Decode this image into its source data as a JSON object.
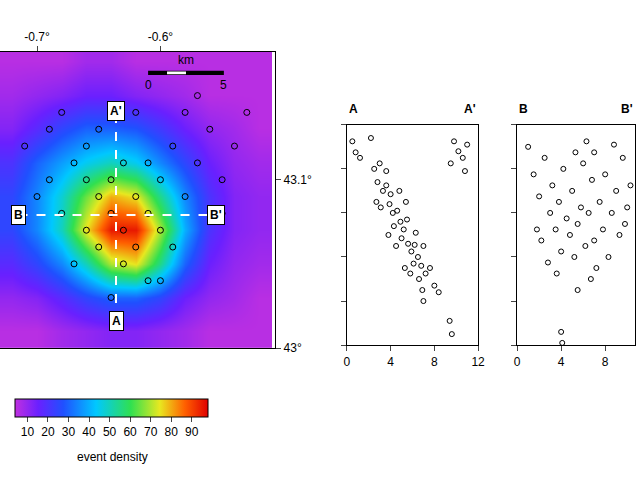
{
  "chart_data": [
    {
      "type": "heatmap",
      "x": [
        -0.72,
        -0.7,
        -0.68,
        -0.66,
        -0.64,
        -0.62,
        -0.6,
        -0.58,
        -0.56,
        -0.54,
        -0.52
      ],
      "y": [
        43.01,
        43.03,
        43.05,
        43.07,
        43.09,
        43.11,
        43.13,
        43.15,
        43.17
      ],
      "z": [
        [
          5,
          5,
          8,
          10,
          12,
          12,
          10,
          8,
          5,
          5,
          5
        ],
        [
          10,
          12,
          18,
          25,
          30,
          30,
          25,
          15,
          10,
          8,
          5
        ],
        [
          18,
          25,
          35,
          50,
          70,
          75,
          55,
          30,
          15,
          10,
          8
        ],
        [
          25,
          35,
          50,
          75,
          95,
          95,
          70,
          40,
          20,
          12,
          10
        ],
        [
          25,
          35,
          48,
          65,
          80,
          75,
          55,
          35,
          20,
          12,
          10
        ],
        [
          20,
          30,
          38,
          45,
          50,
          45,
          35,
          25,
          15,
          10,
          8
        ],
        [
          12,
          18,
          25,
          30,
          30,
          28,
          22,
          15,
          10,
          8,
          5
        ],
        [
          8,
          10,
          12,
          15,
          15,
          12,
          10,
          8,
          5,
          5,
          5
        ],
        [
          5,
          5,
          5,
          8,
          8,
          5,
          5,
          5,
          5,
          5,
          5
        ]
      ],
      "xlim": [
        -0.73,
        -0.507
      ],
      "ylim": [
        43.0,
        43.176
      ],
      "xticks": [
        {
          "value": -0.7,
          "label": "-0.7°"
        },
        {
          "value": -0.6,
          "label": "-0.6°"
        }
      ],
      "yticks": [
        {
          "value": 43.0,
          "label": "43°"
        },
        {
          "value": 43.1,
          "label": "43.1°"
        }
      ],
      "zlim": [
        4,
        98
      ],
      "zticks": [
        10,
        20,
        30,
        40,
        50,
        60,
        70,
        80,
        90
      ],
      "colorbar_title": "event density",
      "marker": "circle-open",
      "events": {
        "x": [
          -0.7,
          -0.69,
          -0.68,
          -0.67,
          -0.66,
          -0.66,
          -0.65,
          -0.65,
          -0.64,
          -0.64,
          -0.63,
          -0.63,
          -0.62,
          -0.62,
          -0.61,
          -0.61,
          -0.6,
          -0.6,
          -0.59,
          -0.58,
          -0.58,
          -0.57,
          -0.56,
          -0.55,
          -0.54,
          -0.53,
          -0.71,
          -0.69,
          -0.67,
          -0.65,
          -0.63,
          -0.61,
          -0.59,
          -0.57,
          -0.55,
          -0.68,
          -0.62,
          -0.6,
          -0.64,
          -0.66
        ],
        "y": [
          43.09,
          43.1,
          43.08,
          43.11,
          43.07,
          43.12,
          43.09,
          43.06,
          43.1,
          43.08,
          43.07,
          43.05,
          43.09,
          43.06,
          43.08,
          43.11,
          43.07,
          43.1,
          43.12,
          43.09,
          43.14,
          43.11,
          43.13,
          43.1,
          43.12,
          43.14,
          43.12,
          43.13,
          43.05,
          43.13,
          43.11,
          43.04,
          43.06,
          43.15,
          43.08,
          43.14,
          43.14,
          43.04,
          43.03,
          43.1
        ]
      },
      "sections": [
        {
          "start_label": "A",
          "end_label": "A'",
          "x": [
            -0.636,
            -0.636
          ],
          "y": [
            43.016,
            43.141
          ]
        },
        {
          "start_label": "B",
          "end_label": "B'",
          "x": [
            -0.715,
            -0.555
          ],
          "y": [
            43.079,
            43.079
          ]
        }
      ],
      "scale_bar": {
        "label": "km",
        "x": [
          -0.61,
          -0.5486
        ],
        "y": 43.1635,
        "marks": [
          0,
          5
        ]
      }
    },
    {
      "type": "scatter",
      "start_label": "A",
      "end_label": "A'",
      "marker": "circle-open",
      "tick_labels": "x",
      "xlim": [
        0,
        12
      ],
      "xticks": [
        0,
        4,
        8,
        12
      ],
      "ylim": [
        20,
        0
      ],
      "yticks": [
        0,
        4,
        8,
        12,
        16,
        20
      ],
      "x": [
        0.5,
        0.8,
        1.2,
        2.2,
        2.5,
        3.0,
        2.8,
        3.3,
        3.6,
        2.7,
        3.1,
        3.9,
        4.2,
        4.6,
        4.3,
        4.9,
        5.2,
        5.5,
        5.0,
        5.6,
        5.9,
        6.2,
        6.5,
        6.1,
        6.8,
        7.2,
        5.3,
        4.5,
        3.8,
        6.6,
        7.6,
        8.0,
        8.4,
        7.0,
        9.4,
        9.6,
        3.6,
        4.0,
        5.4,
        4.8,
        9.8,
        10.2,
        10.6,
        11.0,
        9.5,
        10.8,
        6.3,
        7.0,
        5.8,
        6.9
      ],
      "y": [
        1.5,
        2.5,
        3.0,
        1.2,
        4.0,
        3.5,
        5.2,
        6.0,
        5.5,
        7.0,
        7.5,
        7.2,
        8.0,
        7.8,
        9.2,
        8.8,
        9.5,
        8.6,
        10.3,
        10.8,
        11.5,
        10.9,
        12.0,
        12.6,
        12.8,
        13.5,
        13.0,
        11.0,
        10.0,
        14.0,
        13.0,
        14.6,
        15.2,
        16.0,
        17.8,
        19.0,
        4.2,
        6.3,
        7.0,
        6.0,
        1.5,
        2.4,
        3.0,
        1.8,
        3.5,
        4.2,
        9.8,
        11.0,
        13.5,
        15.0
      ]
    },
    {
      "type": "scatter",
      "start_label": "B",
      "end_label": "B'",
      "marker": "circle-open",
      "tick_labels": "x",
      "xlim": [
        0,
        10.7
      ],
      "xticks": [
        0,
        4,
        8
      ],
      "ylim": [
        20,
        0
      ],
      "yticks": [
        0,
        4,
        8,
        12,
        16,
        20
      ],
      "x": [
        1.0,
        1.5,
        2.0,
        2.5,
        3.0,
        3.2,
        3.5,
        3.8,
        4.0,
        4.2,
        4.5,
        4.8,
        5.0,
        5.2,
        5.5,
        5.8,
        6.0,
        6.2,
        6.5,
        6.8,
        7.0,
        7.2,
        7.5,
        7.8,
        8.0,
        8.3,
        8.6,
        9.0,
        9.3,
        9.6,
        10.0,
        10.3,
        2.8,
        3.6,
        4.0,
        4.1,
        5.5,
        6.7,
        1.8,
        5.3,
        6.3,
        7.0,
        8.8,
        2.2,
        9.8
      ],
      "y": [
        2.0,
        4.5,
        6.5,
        3.0,
        8.0,
        5.5,
        9.5,
        7.0,
        11.5,
        4.0,
        8.5,
        10.0,
        6.0,
        12.0,
        9.0,
        7.5,
        3.5,
        11.0,
        8.0,
        5.0,
        10.5,
        13.0,
        7.0,
        9.5,
        4.5,
        12.0,
        8.0,
        6.0,
        10.0,
        3.0,
        7.5,
        5.5,
        12.5,
        13.5,
        18.8,
        19.8,
        15.0,
        14.0,
        9.5,
        2.5,
        1.5,
        2.5,
        1.8,
        10.5,
        9.0
      ]
    }
  ]
}
